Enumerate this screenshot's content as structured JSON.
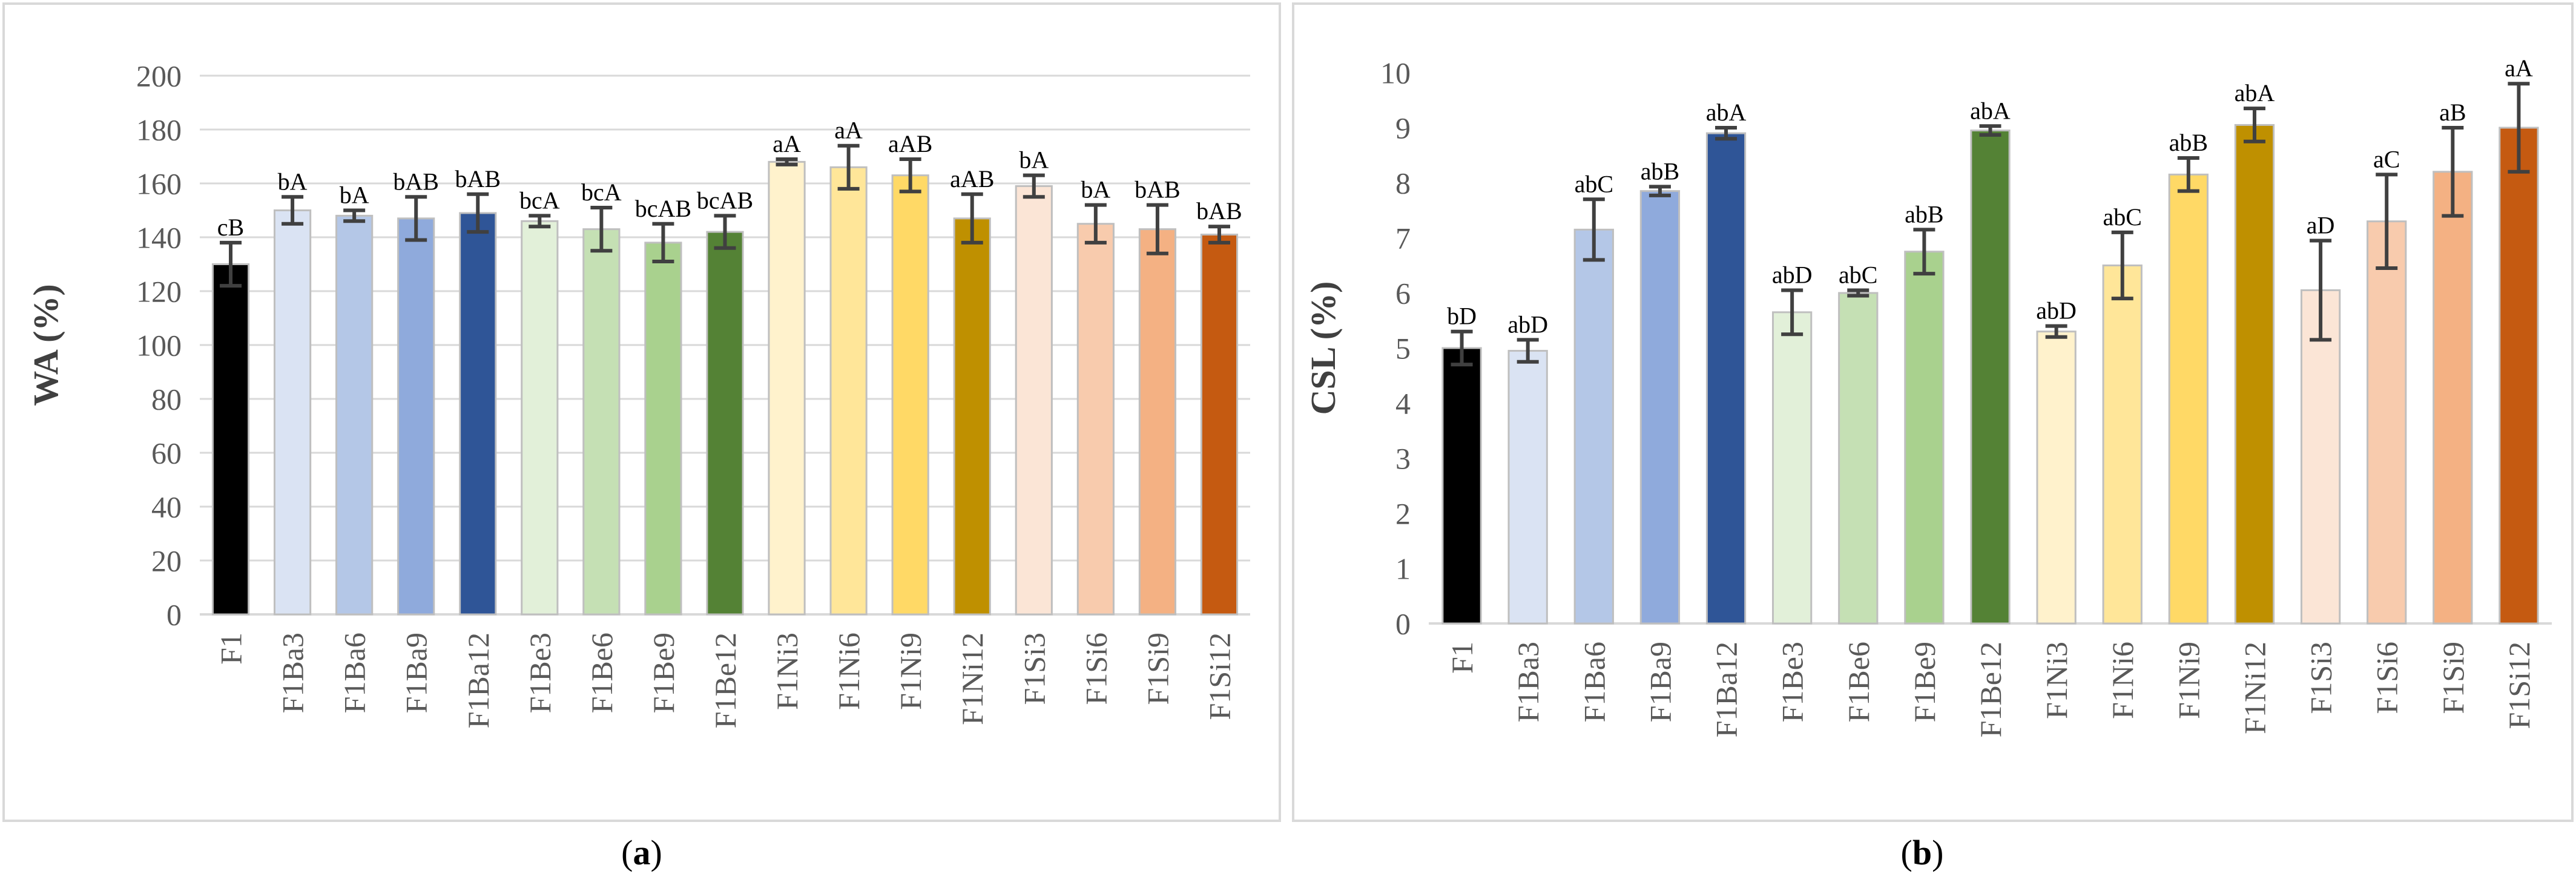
{
  "panels": [
    {
      "caption_open": "(",
      "caption_letter": "a",
      "caption_close": ")",
      "chart_data": {
        "type": "bar",
        "title": "",
        "xlabel": "",
        "ylabel": "WA (%)",
        "ylim": [
          0,
          200
        ],
        "ytick_step": 20,
        "yticks": [
          "0",
          "20",
          "40",
          "60",
          "80",
          "100",
          "120",
          "140",
          "160",
          "180",
          "200"
        ],
        "grid": true,
        "categories": [
          "F1",
          "F1Ba3",
          "F1Ba6",
          "F1Ba9",
          "F1Ba12",
          "F1Be3",
          "F1Be6",
          "F1Be9",
          "F1Be12",
          "F1Ni3",
          "F1Ni6",
          "F1Ni9",
          "F1Ni12",
          "F1Si3",
          "F1Si6",
          "F1Si9",
          "F1Si12"
        ],
        "values": [
          130,
          150,
          148,
          147,
          149,
          146,
          143,
          138,
          142,
          168,
          166,
          163,
          147,
          159,
          145,
          143,
          141
        ],
        "errors": [
          8,
          5,
          2,
          8,
          7,
          2,
          8,
          7,
          6,
          1,
          8,
          6,
          9,
          4,
          7,
          9,
          3
        ],
        "labels": [
          "cB",
          "bA",
          "bA",
          "bAB",
          "bAB",
          "bcA",
          "bcA",
          "bcAB",
          "bcAB",
          "aA",
          "aA",
          "aAB",
          "aAB",
          "bA",
          "bA",
          "bAB",
          "bAB"
        ],
        "colors": [
          "#000000",
          "#dae3f3",
          "#b4c7e7",
          "#8faadc",
          "#2f5597",
          "#e2f0d9",
          "#c5e0b4",
          "#a9d18e",
          "#548235",
          "#fff2cc",
          "#ffe699",
          "#ffd966",
          "#bf9000",
          "#fbe5d6",
          "#f8cbad",
          "#f4b183",
          "#c55a11"
        ]
      }
    },
    {
      "caption_open": "(",
      "caption_letter": "b",
      "caption_close": ")",
      "chart_data": {
        "type": "bar",
        "title": "",
        "xlabel": "",
        "ylabel": "CSL (%)",
        "ylim": [
          0,
          10
        ],
        "ytick_step": 1,
        "yticks": [
          "0",
          "1",
          "2",
          "3",
          "4",
          "5",
          "6",
          "7",
          "8",
          "9",
          "10"
        ],
        "grid": false,
        "categories": [
          "F1",
          "F1Ba3",
          "F1Ba6",
          "F1Ba9",
          "F1Ba12",
          "F1Be3",
          "F1Be6",
          "F1Be9",
          "F1Be12",
          "F1Ni3",
          "F1Ni6",
          "F1Ni9",
          "F1Ni12",
          "F1Si3",
          "F1Si6",
          "F1Si9",
          "F1Si12"
        ],
        "values": [
          5.0,
          4.95,
          7.15,
          7.85,
          8.9,
          5.65,
          6.0,
          6.75,
          8.95,
          5.3,
          6.5,
          8.15,
          9.05,
          6.05,
          7.3,
          8.2,
          9.0
        ],
        "errors": [
          0.3,
          0.2,
          0.55,
          0.08,
          0.1,
          0.4,
          0.05,
          0.4,
          0.08,
          0.1,
          0.6,
          0.3,
          0.3,
          0.9,
          0.85,
          0.8,
          0.8
        ],
        "labels": [
          "bD",
          "abD",
          "abC",
          "abB",
          "abA",
          "abD",
          "abC",
          "abB",
          "abA",
          "abD",
          "abC",
          "abB",
          "abA",
          "aD",
          "aC",
          "aB",
          "aA"
        ],
        "colors": [
          "#000000",
          "#dae3f3",
          "#b4c7e7",
          "#8faadc",
          "#2f5597",
          "#e2f0d9",
          "#c5e0b4",
          "#a9d18e",
          "#548235",
          "#fff2cc",
          "#ffe699",
          "#ffd966",
          "#bf9000",
          "#fbe5d6",
          "#f8cbad",
          "#f4b183",
          "#c55a11"
        ]
      }
    }
  ],
  "style": {
    "axis_color": "#d9d9d9",
    "grid_color": "#d9d9d9",
    "tick_text_color": "#595959",
    "label_text_color": "#404040",
    "error_color": "#404040",
    "frame_color": "#d9d9d9",
    "bar_stroke": "#bfbfbf"
  }
}
